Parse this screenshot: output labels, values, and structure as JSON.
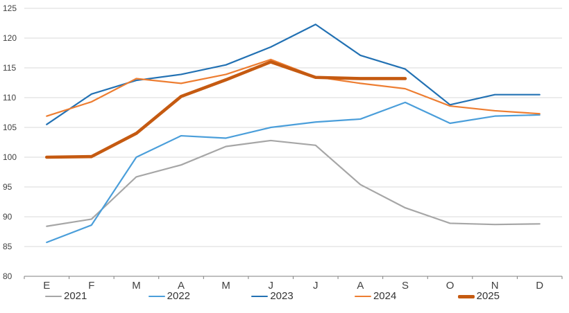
{
  "chart_data": {
    "type": "line",
    "title": "",
    "xlabel": "",
    "ylabel": "",
    "x_categories": [
      "E",
      "F",
      "M",
      "A",
      "M",
      "J",
      "J",
      "A",
      "S",
      "O",
      "N",
      "D"
    ],
    "y_ticks": [
      80,
      85,
      90,
      95,
      100,
      105,
      110,
      115,
      120,
      125
    ],
    "ylim": [
      80,
      125
    ],
    "grid": "horizontal",
    "legend_position": "bottom",
    "series": [
      {
        "name": "2021",
        "color": "#A6A6A6",
        "width": 2.2,
        "values": [
          88.4,
          89.6,
          96.7,
          98.7,
          101.8,
          102.8,
          102.0,
          95.4,
          91.5,
          88.9,
          88.7,
          88.8
        ]
      },
      {
        "name": "2022",
        "color": "#4A9EDA",
        "width": 2.2,
        "values": [
          85.7,
          88.6,
          100.0,
          103.6,
          103.2,
          105.0,
          105.9,
          106.4,
          109.2,
          105.7,
          106.9,
          107.1
        ]
      },
      {
        "name": "2023",
        "color": "#2271B3",
        "width": 2.2,
        "values": [
          105.5,
          110.6,
          112.9,
          113.9,
          115.5,
          118.5,
          122.3,
          117.1,
          114.8,
          108.8,
          110.5,
          110.5
        ]
      },
      {
        "name": "2024",
        "color": "#ED7D31",
        "width": 2.2,
        "values": [
          106.9,
          109.3,
          113.2,
          112.4,
          113.9,
          116.4,
          113.5,
          112.4,
          111.5,
          108.6,
          107.8,
          107.3
        ]
      },
      {
        "name": "2025",
        "color": "#C55A11",
        "width": 4.6,
        "values": [
          100.0,
          100.1,
          104.0,
          110.2,
          113.0,
          116.0,
          113.4,
          113.2,
          113.2
        ]
      }
    ],
    "style": {
      "axis_text_color": "#404040",
      "gridline_color": "#D9D9D9",
      "axis_line_color": "#7F7F7F",
      "y_tick_font_px": 12,
      "x_tick_font_px": 15
    }
  }
}
